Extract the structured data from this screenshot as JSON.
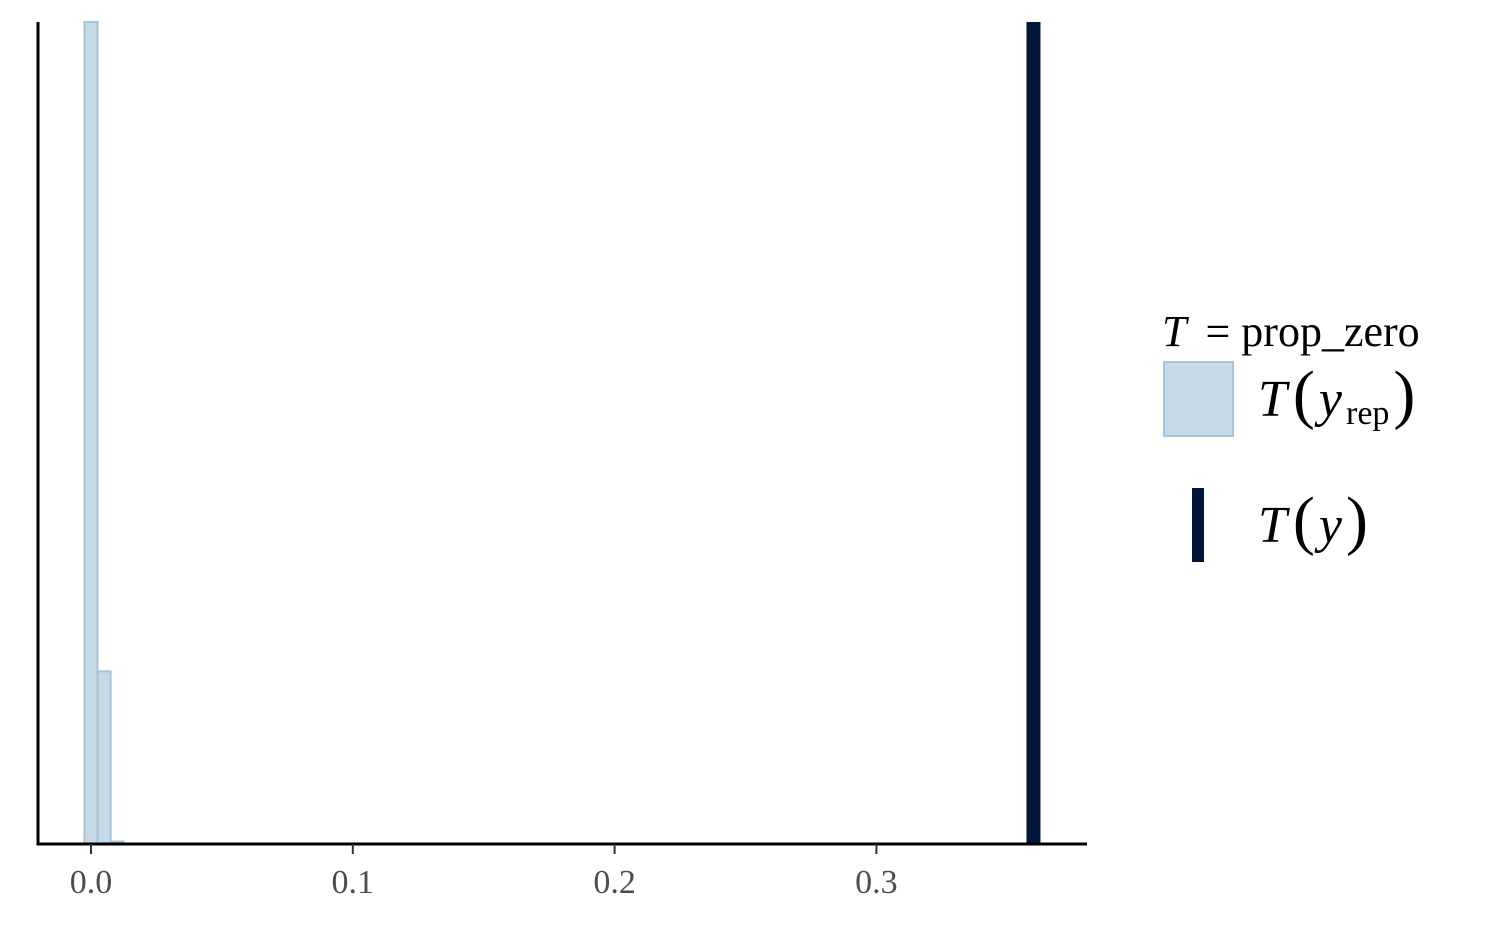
{
  "chart_data": {
    "type": "histogram",
    "statistic_name": "prop_zero",
    "x_axis": {
      "ticks": [
        0.0,
        0.1,
        0.2,
        0.3
      ],
      "tick_labels": [
        "0.0",
        "0.1",
        "0.2",
        "0.3"
      ],
      "range": [
        -0.02,
        0.38
      ]
    },
    "y_axis": {
      "shown": false
    },
    "bins": [
      {
        "x0": -0.0025,
        "x1": 0.0025,
        "relative_height": 1.0
      },
      {
        "x0": 0.0025,
        "x1": 0.0075,
        "relative_height": 0.21
      },
      {
        "x0": 0.0075,
        "x1": 0.0125,
        "relative_height": 0.003
      }
    ],
    "observed_value": 0.36,
    "grid": false,
    "legend": {
      "placement": "right",
      "title_T": "T",
      "title_rest": "= prop_zero",
      "items": [
        {
          "key": "yrep",
          "T": "T",
          "y": "y",
          "sub": "rep"
        },
        {
          "key": "y",
          "T": "T",
          "y": "y"
        }
      ]
    }
  },
  "colors": {
    "hist_fill": "#c6d9e6",
    "hist_stroke": "#a7c4d6",
    "observed_line": "#011638",
    "axis": "#000000",
    "tick_text": "#4d4d4d"
  }
}
